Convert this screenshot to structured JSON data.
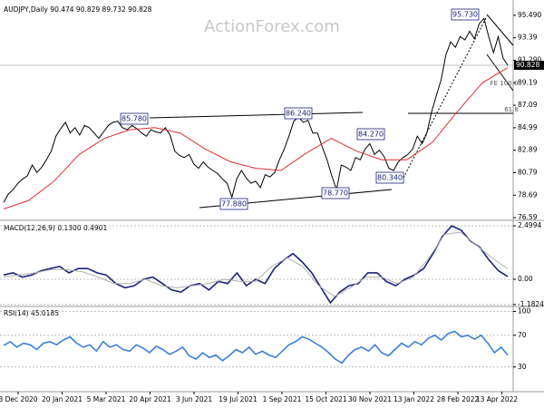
{
  "watermark": "ActionForex.com",
  "x_axis": {
    "labels": [
      "3 Dec 2020",
      "20 Jan 2021",
      "5 Mar 2021",
      "20 Apr 2021",
      "3 Jun 2021",
      "19 Jul 2021",
      "1 Sep 2021",
      "15 Oct 2021",
      "30 Nov 2021",
      "13 Jan 2022",
      "28 Feb 2022",
      "13 Apr 2022"
    ]
  },
  "chart_data": [
    {
      "type": "line",
      "title": "AUDJPY,Daily  90.474 90.829 89.732 90.828",
      "ylim": [
        76.34,
        96.5
      ],
      "yticks": [
        {
          "value": 95.49,
          "label": "95.490"
        },
        93.39,
        {
          "value": 91.29,
          "label": "91.290"
        },
        89.19,
        87.09,
        84.99,
        82.89,
        80.79,
        78.69,
        76.59
      ],
      "last_price": 90.828,
      "annotations": [
        {
          "text": "95.730"
        },
        {
          "text": "85.780"
        },
        {
          "text": "86.240"
        },
        {
          "text": "84.270"
        },
        {
          "text": "80.340"
        },
        {
          "text": "77.880"
        },
        {
          "text": "78.770"
        },
        {
          "text": "FE 100.0"
        },
        {
          "text": "61.8"
        }
      ],
      "series": [
        {
          "color": "#000000",
          "values": [
            78.0,
            78.8,
            79.2,
            79.8,
            80.2,
            80.5,
            81.5,
            80.8,
            81.3,
            82.0,
            82.8,
            84.2,
            84.9,
            85.5,
            84.5,
            85.0,
            84.3,
            85.2,
            85.0,
            84.5,
            84.0,
            84.6,
            85.2,
            85.5,
            85.6,
            85.0,
            84.8,
            85.2,
            84.9,
            84.5,
            84.2,
            84.8,
            84.6,
            84.5,
            85.0,
            84.3,
            82.8,
            82.4,
            82.2,
            82.5,
            81.6,
            81.2,
            81.8,
            81.3,
            81.0,
            80.7,
            80.2,
            79.8,
            78.5,
            80.2,
            81.0,
            80.3,
            79.8,
            80.0,
            79.4,
            80.6,
            80.4,
            80.8,
            82.0,
            83.0,
            84.2,
            85.6,
            86.0,
            85.5,
            85.7,
            84.5,
            84.5,
            83.2,
            82.0,
            80.5,
            79.2,
            81.5,
            81.3,
            81.0,
            82.2,
            82.0,
            83.0,
            83.5,
            82.5,
            82.9,
            82.3,
            81.2,
            81.0,
            81.8,
            82.2,
            82.5,
            83.0,
            84.2,
            83.5,
            84.5,
            86.5,
            88.0,
            89.5,
            91.8,
            93.0,
            92.5,
            93.5,
            93.2,
            94.0,
            93.3,
            94.7,
            95.2,
            93.5,
            92.0,
            93.5,
            91.5,
            90.828
          ]
        },
        {
          "color": "#e03030",
          "values": [
            77.4,
            78.2,
            80.0,
            82.5,
            84.0,
            84.8,
            85.0,
            84.5,
            83.0,
            81.8,
            81.2,
            81.0,
            82.6,
            84.0,
            82.8,
            82.0,
            82.0,
            83.6,
            86.5,
            89.2,
            90.6
          ]
        }
      ]
    },
    {
      "type": "line",
      "title": "MACD(12,26,9) 0.1300 0.4901",
      "ylim": [
        -1.23,
        2.63
      ],
      "yticks": [
        2.4994,
        {
          "value": 0,
          "label": "0.00"
        },
        -1.1824
      ],
      "series": [
        {
          "color": "#1a237e",
          "values": [
            0.2,
            0.3,
            0.1,
            0.2,
            0.4,
            0.5,
            0.6,
            0.3,
            0.5,
            0.5,
            0.3,
            0.2,
            -0.2,
            -0.4,
            -0.3,
            0.0,
            0.1,
            -0.2,
            -0.5,
            -0.6,
            -0.3,
            -0.2,
            -0.5,
            -0.1,
            -0.2,
            0.3,
            -0.3,
            0.0,
            -0.2,
            0.5,
            0.9,
            1.2,
            0.8,
            0.3,
            -0.4,
            -1.1,
            -0.6,
            -0.3,
            -0.2,
            0.3,
            0.3,
            -0.1,
            -0.3,
            0.0,
            0.2,
            0.5,
            1.2,
            2.0,
            2.5,
            2.3,
            1.8,
            1.5,
            0.9,
            0.4,
            0.13
          ]
        },
        {
          "color": "#b0b0b0",
          "values": [
            0.1,
            0.2,
            0.3,
            0.45,
            0.45,
            0.35,
            0.1,
            -0.2,
            -0.2,
            0.0,
            -0.3,
            -0.4,
            -0.3,
            -0.2,
            0.0,
            -0.1,
            -0.1,
            0.6,
            1.0,
            0.6,
            -0.3,
            -0.8,
            -0.4,
            0.1,
            0.1,
            -0.2,
            0.1,
            1.0,
            2.1,
            2.2,
            1.6,
            1.0,
            0.49
          ]
        }
      ]
    },
    {
      "type": "line",
      "title": "RSI(14) 45.0185",
      "ylim": [
        0,
        104
      ],
      "yticks": [
        100,
        70,
        30
      ],
      "series": [
        {
          "color": "#3d7fd9",
          "values": [
            57,
            62,
            55,
            60,
            58,
            52,
            60,
            62,
            58,
            64,
            68,
            60,
            55,
            58,
            50,
            62,
            55,
            58,
            52,
            50,
            58,
            54,
            48,
            56,
            52,
            46,
            50,
            55,
            44,
            40,
            48,
            42,
            45,
            38,
            44,
            52,
            48,
            55,
            46,
            50,
            45,
            42,
            50,
            58,
            62,
            68,
            65,
            60,
            55,
            48,
            40,
            35,
            45,
            52,
            55,
            50,
            58,
            48,
            44,
            52,
            60,
            55,
            62,
            58,
            66,
            70,
            64,
            72,
            75,
            68,
            70,
            65,
            70,
            60,
            48,
            55,
            45
          ]
        }
      ]
    }
  ]
}
